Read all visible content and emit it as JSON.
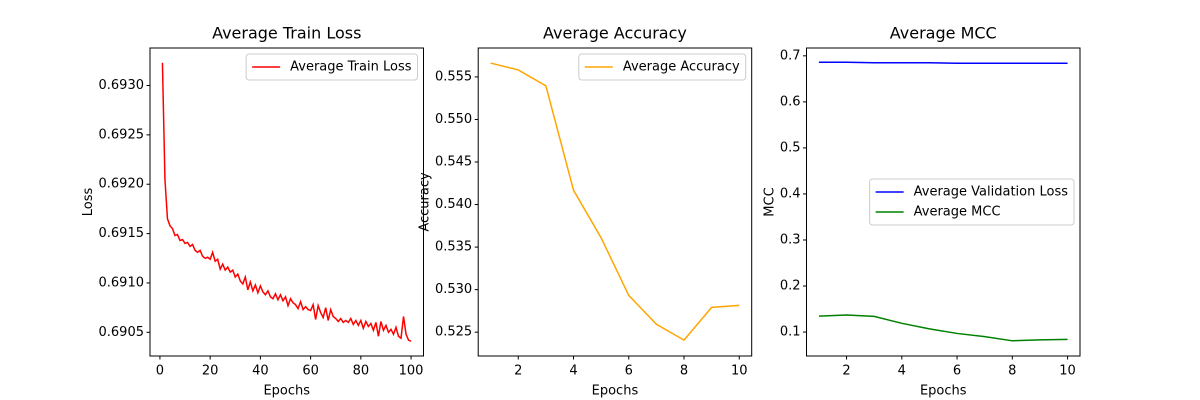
{
  "chart_data": [
    {
      "type": "line",
      "title": "Average Train Loss",
      "xlabel": "Epochs",
      "ylabel": "Loss",
      "legend": "upper right",
      "x": [
        1,
        2,
        3,
        4,
        5,
        6,
        7,
        8,
        9,
        10,
        11,
        12,
        13,
        14,
        15,
        16,
        17,
        18,
        19,
        20,
        21,
        22,
        23,
        24,
        25,
        26,
        27,
        28,
        29,
        30,
        31,
        32,
        33,
        34,
        35,
        36,
        37,
        38,
        39,
        40,
        41,
        42,
        43,
        44,
        45,
        46,
        47,
        48,
        49,
        50,
        51,
        52,
        53,
        54,
        55,
        56,
        57,
        58,
        59,
        60,
        61,
        62,
        63,
        64,
        65,
        66,
        67,
        68,
        69,
        70,
        71,
        72,
        73,
        74,
        75,
        76,
        77,
        78,
        79,
        80,
        81,
        82,
        83,
        84,
        85,
        86,
        87,
        88,
        89,
        90,
        91,
        92,
        93,
        94,
        95,
        96,
        97,
        98,
        99,
        100
      ],
      "series": [
        {
          "name": "Average Train Loss",
          "color": "#ff0000",
          "values": [
            0.69323,
            0.69205,
            0.69165,
            0.69158,
            0.69155,
            0.69148,
            0.69149,
            0.69143,
            0.69144,
            0.6914,
            0.69141,
            0.69137,
            0.69139,
            0.69133,
            0.69131,
            0.69133,
            0.69127,
            0.69125,
            0.69126,
            0.69124,
            0.69131,
            0.69122,
            0.69124,
            0.69114,
            0.69119,
            0.69113,
            0.69116,
            0.69111,
            0.69113,
            0.69106,
            0.69109,
            0.69102,
            0.69099,
            0.69106,
            0.69093,
            0.69101,
            0.69092,
            0.69098,
            0.6909,
            0.69097,
            0.69091,
            0.69088,
            0.69092,
            0.69086,
            0.69084,
            0.69089,
            0.69083,
            0.69088,
            0.69082,
            0.69086,
            0.69077,
            0.69084,
            0.6908,
            0.69078,
            0.69074,
            0.69081,
            0.69073,
            0.69076,
            0.69073,
            0.69072,
            0.69078,
            0.69063,
            0.69077,
            0.6907,
            0.69065,
            0.69075,
            0.69062,
            0.69073,
            0.69066,
            0.69064,
            0.69061,
            0.69064,
            0.6906,
            0.69062,
            0.6906,
            0.69064,
            0.69058,
            0.69062,
            0.69057,
            0.69062,
            0.69054,
            0.69061,
            0.69056,
            0.69059,
            0.69052,
            0.6906,
            0.69046,
            0.69061,
            0.69052,
            0.69057,
            0.6905,
            0.69053,
            0.69048,
            0.69055,
            0.69046,
            0.69044,
            0.69066,
            0.69048,
            0.69042,
            0.69041
          ]
        }
      ],
      "xlim": [
        -3.95,
        104.95
      ],
      "xticks": [
        0,
        20,
        40,
        60,
        80,
        100
      ],
      "ylim": [
        0.69026,
        0.69338
      ],
      "yticks": [
        0.6905,
        {
          "value": 0.691,
          "label": "0.6910"
        },
        0.6915,
        {
          "value": 0.692,
          "label": "0.6920"
        },
        0.6925,
        {
          "value": 0.693,
          "label": "0.6930"
        }
      ]
    },
    {
      "type": "line",
      "title": "Average Accuracy",
      "xlabel": "Epochs",
      "ylabel": "Accuracy",
      "legend": "upper right",
      "x": [
        1,
        2,
        3,
        4,
        5,
        6,
        7,
        8,
        9,
        10
      ],
      "series": [
        {
          "name": "Average Accuracy",
          "color": "#ffa500",
          "values": [
            0.55663,
            0.55582,
            0.55395,
            0.54169,
            0.53609,
            0.52932,
            0.52593,
            0.52407,
            0.52792,
            0.52815
          ]
        }
      ],
      "xlim": [
        0.55,
        10.45
      ],
      "xticks": [
        2,
        4,
        6,
        8,
        10
      ],
      "ylim": [
        0.5222,
        0.5584
      ],
      "yticks": [
        0.525,
        {
          "value": 0.53,
          "label": "0.530"
        },
        0.535,
        {
          "value": 0.54,
          "label": "0.540"
        },
        0.545,
        {
          "value": 0.55,
          "label": "0.550"
        },
        0.555
      ]
    },
    {
      "type": "line",
      "title": "Average MCC",
      "xlabel": "Epochs",
      "ylabel": "MCC",
      "legend": "center right",
      "x": [
        1,
        2,
        3,
        4,
        5,
        6,
        7,
        8,
        9,
        10
      ],
      "series": [
        {
          "name": "Average Validation Loss",
          "color": "#0000ff",
          "values": [
            0.686,
            0.686,
            0.685,
            0.685,
            0.685,
            0.684,
            0.684,
            0.684,
            0.684,
            0.684
          ]
        },
        {
          "name": "Average MCC",
          "color": "#008000",
          "values": [
            0.1345,
            0.137,
            0.134,
            0.119,
            0.107,
            0.097,
            0.09,
            0.081,
            0.083,
            0.084
          ]
        }
      ],
      "xlim": [
        0.55,
        10.45
      ],
      "xticks": [
        2,
        4,
        6,
        8,
        10
      ],
      "ylim": [
        0.048,
        0.717
      ],
      "yticks": [
        0.1,
        0.2,
        0.3,
        0.4,
        0.5,
        0.6,
        0.7
      ]
    }
  ]
}
